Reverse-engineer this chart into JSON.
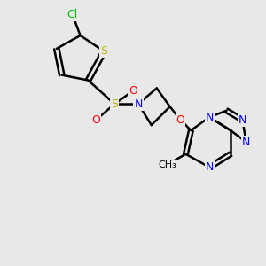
{
  "bg_color": "#e8e8e8",
  "atom_colors": {
    "C": "#000000",
    "N": "#0000ff",
    "O": "#ff0000",
    "S": "#b8b800",
    "Cl": "#00bb00"
  },
  "bond_color": "#000000",
  "bond_width": 1.8,
  "dbo": 0.07
}
